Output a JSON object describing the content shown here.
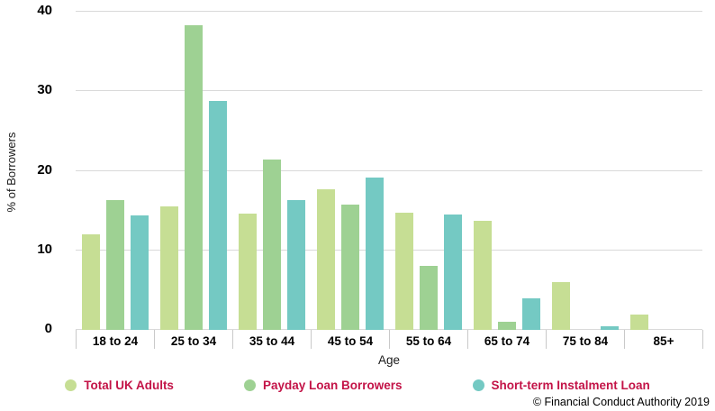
{
  "chart_data": {
    "type": "bar",
    "title": "",
    "categories": [
      "18 to 24",
      "25 to 34",
      "35 to 44",
      "45 to 54",
      "55 to 64",
      "65 to 74",
      "75 to 84",
      "85+"
    ],
    "series": [
      {
        "name": "Total UK Adults",
        "color": "#c6de94",
        "values": [
          12.0,
          15.5,
          14.6,
          17.7,
          14.7,
          13.7,
          6.0,
          1.9
        ]
      },
      {
        "name": "Payday Loan Borrowers",
        "color": "#9ed193",
        "values": [
          16.3,
          38.3,
          21.4,
          15.7,
          8.0,
          1.0,
          0,
          0
        ]
      },
      {
        "name": "Short-term Instalment Loan",
        "color": "#74c9c3",
        "values": [
          14.4,
          28.8,
          16.3,
          19.1,
          14.5,
          4.0,
          0.5,
          0
        ]
      }
    ],
    "xlabel": "Age",
    "ylabel": "% of Borrowers",
    "ylim": [
      0,
      40
    ],
    "yticks": [
      0,
      10,
      20,
      30,
      40
    ],
    "grid": "horizontal",
    "legend_position": "bottom"
  },
  "footer": {
    "copyright": "© Financial Conduct Authority 2019"
  },
  "colors": {
    "legend_text": "#c31347",
    "gridline": "#d9d9d9",
    "tick_separator": "#c9c9c9",
    "axis_text": "#000000"
  }
}
